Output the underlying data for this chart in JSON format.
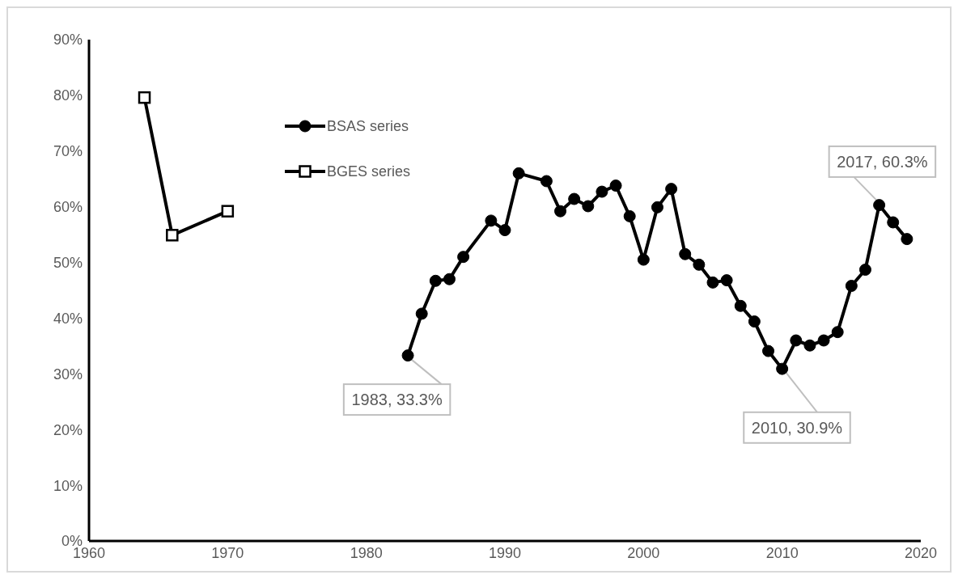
{
  "chart_data": {
    "type": "line",
    "legend": "top left",
    "grid": false,
    "line_style": "solid",
    "xlim": [
      1960,
      2020
    ],
    "xticks": [
      1960,
      1970,
      1980,
      1990,
      2000,
      2010,
      2020
    ],
    "ylim": [
      0,
      90
    ],
    "yticks": [
      {
        "value": 0,
        "label": "0%"
      },
      {
        "value": 10,
        "label": "10%"
      },
      {
        "value": 20,
        "label": "20%"
      },
      {
        "value": 30,
        "label": "30%"
      },
      {
        "value": 40,
        "label": "40%"
      },
      {
        "value": 50,
        "label": "50%"
      },
      {
        "value": 60,
        "label": "60%"
      },
      {
        "value": 70,
        "label": "70%"
      },
      {
        "value": 80,
        "label": "80%"
      },
      {
        "value": 90,
        "label": "90%"
      }
    ],
    "series": [
      {
        "name": "BSAS series",
        "color": "#000000",
        "marker": "circle",
        "x": [
          1983,
          1984,
          1985,
          1986,
          1987,
          1989,
          1990,
          1991,
          1993,
          1994,
          1995,
          1996,
          1997,
          1998,
          1999,
          2000,
          2001,
          2002,
          2003,
          2004,
          2005,
          2006,
          2007,
          2008,
          2009,
          2010,
          2011,
          2012,
          2013,
          2014,
          2015,
          2016,
          2017,
          2018,
          2019
        ],
        "values": [
          33.3,
          40.8,
          46.7,
          47.0,
          51.0,
          57.5,
          55.8,
          66.0,
          64.6,
          59.2,
          61.4,
          60.1,
          62.7,
          63.8,
          58.3,
          50.5,
          59.9,
          63.2,
          51.5,
          49.6,
          46.4,
          46.8,
          42.2,
          39.4,
          34.1,
          30.9,
          36.0,
          35.1,
          36.0,
          37.5,
          45.8,
          48.7,
          60.3,
          57.2,
          54.2
        ]
      },
      {
        "name": "BGES series",
        "color": "#000000",
        "marker": "square",
        "x": [
          1964,
          1966,
          1970
        ],
        "values": [
          79.6,
          54.9,
          59.2
        ]
      }
    ],
    "annotations": [
      {
        "text": "1983, 33.3%",
        "x": 1983,
        "y": 33.3
      },
      {
        "text": "2010, 30.9%",
        "x": 2010,
        "y": 30.9
      },
      {
        "text": "2017, 60.3%",
        "x": 2017,
        "y": 60.3
      }
    ]
  }
}
